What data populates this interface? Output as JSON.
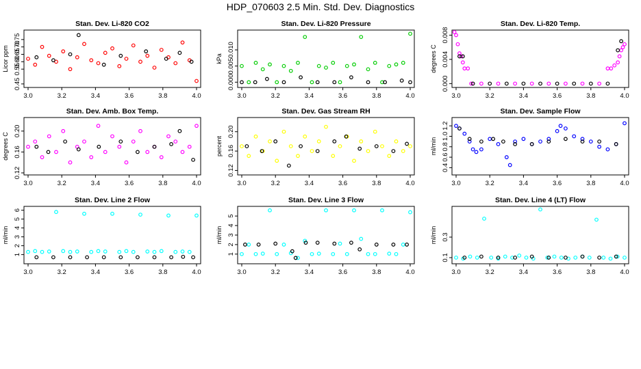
{
  "figure_title": "HDP_070603  2.5 Min. Std. Dev. Diagnostics",
  "chart_data": [
    {
      "type": "scatter",
      "title": "Stan. Dev. Li-820 CO2",
      "ylabel": "Licor ppm",
      "xlim": [
        3.0,
        4.0
      ],
      "ylim": [
        0.44,
        0.8
      ],
      "xticks": [
        "3.0",
        "3.2",
        "3.4",
        "3.6",
        "3.8",
        "4.0"
      ],
      "yticks": [
        {
          "v": 0.45,
          "label": "0.45"
        },
        {
          "v": 0.55,
          "label": "0.55"
        },
        {
          "v": 0.6,
          "label": "0.60"
        },
        {
          "v": 0.65,
          "label": "0.65"
        },
        {
          "v": 0.7,
          "label": "0.70"
        },
        {
          "v": 0.75,
          "label": "0.75"
        }
      ],
      "series": [
        {
          "color": "#ff0000",
          "x": [
            3.0,
            3.0417,
            3.0833,
            3.125,
            3.1667,
            3.2083,
            3.25,
            3.2917,
            3.3333,
            3.375,
            3.4167,
            3.4583,
            3.5,
            3.5417,
            3.5833,
            3.625,
            3.6667,
            3.7083,
            3.75,
            3.7917,
            3.8333,
            3.875,
            3.9167,
            3.9583,
            4.0
          ],
          "y": [
            0.62,
            0.58,
            0.7,
            0.64,
            0.6,
            0.67,
            0.55,
            0.63,
            0.72,
            0.61,
            0.59,
            0.66,
            0.69,
            0.57,
            0.62,
            0.71,
            0.6,
            0.64,
            0.56,
            0.68,
            0.63,
            0.59,
            0.73,
            0.61,
            0.47
          ]
        },
        {
          "color": "#000000",
          "x": [
            3.05,
            3.15,
            3.25,
            3.3,
            3.45,
            3.55,
            3.7,
            3.82,
            3.9,
            3.97
          ],
          "y": [
            0.63,
            0.61,
            0.65,
            0.78,
            0.58,
            0.64,
            0.67,
            0.62,
            0.66,
            0.6
          ]
        }
      ]
    },
    {
      "type": "scatter",
      "title": "Stan. Dev. Li-820 Pressure",
      "ylabel": "kPa",
      "xlim": [
        3.0,
        4.0
      ],
      "ylim": [
        -0.001,
        0.0155
      ],
      "xticks": [
        "3.0",
        "3.2",
        "3.4",
        "3.6",
        "3.8",
        "4.0"
      ],
      "yticks": [
        {
          "v": 0.0,
          "label": "0.000"
        },
        {
          "v": 0.005,
          "label": "0.005"
        },
        {
          "v": 0.01,
          "label": "0.010"
        }
      ],
      "series": [
        {
          "color": "#00cc00",
          "x": [
            3.0,
            3.0417,
            3.0833,
            3.125,
            3.1667,
            3.2083,
            3.25,
            3.2917,
            3.3333,
            3.375,
            3.4167,
            3.4583,
            3.5,
            3.5417,
            3.5833,
            3.625,
            3.6667,
            3.7083,
            3.75,
            3.7917,
            3.8333,
            3.875,
            3.9167,
            3.9583,
            4.0
          ],
          "y": [
            0.005,
            0.0,
            0.006,
            0.004,
            0.0055,
            0.0,
            0.005,
            0.0035,
            0.006,
            0.014,
            0.0,
            0.005,
            0.0045,
            0.006,
            0.0,
            0.005,
            0.0055,
            0.014,
            0.004,
            0.006,
            0.0,
            0.005,
            0.0055,
            0.006,
            0.015
          ]
        },
        {
          "color": "#000000",
          "x": [
            3.0,
            3.08,
            3.15,
            3.25,
            3.35,
            3.45,
            3.55,
            3.65,
            3.75,
            3.85,
            3.95,
            4.0
          ],
          "y": [
            0.0,
            0.0,
            0.001,
            0.0,
            0.0015,
            0.0,
            0.0,
            0.0015,
            0.0,
            0.0,
            0.0005,
            0.0
          ]
        }
      ]
    },
    {
      "type": "scatter",
      "title": "Stan. Dev. Li-820 Temp.",
      "ylabel": "degrees C",
      "xlim": [
        3.0,
        4.0
      ],
      "ylim": [
        -0.0003,
        0.0085
      ],
      "xticks": [
        "3.0",
        "3.2",
        "3.4",
        "3.6",
        "3.8",
        "4.0"
      ],
      "yticks": [
        {
          "v": 0.0,
          "label": "0.000"
        },
        {
          "v": 0.004,
          "label": "0.004"
        },
        {
          "v": 0.008,
          "label": "0.008"
        }
      ],
      "series": [
        {
          "color": "#ff00ff",
          "x": [
            2.99,
            3.0,
            3.01,
            3.02,
            3.03,
            3.04,
            3.05,
            3.07,
            3.09,
            3.15,
            3.25,
            3.35,
            3.45,
            3.55,
            3.65,
            3.75,
            3.85,
            3.9,
            3.92,
            3.94,
            3.96,
            3.97,
            3.98,
            3.99,
            4.0
          ],
          "y": [
            0.0085,
            0.008,
            0.0065,
            0.005,
            0.0045,
            0.0035,
            0.0025,
            0.0025,
            0.0,
            0.0,
            0.0,
            0.0,
            0.0,
            0.0,
            0.0,
            0.0,
            0.0,
            0.0025,
            0.0025,
            0.003,
            0.0035,
            0.0045,
            0.0055,
            0.006,
            0.0065
          ]
        },
        {
          "color": "#000000",
          "x": [
            3.02,
            3.04,
            3.1,
            3.2,
            3.3,
            3.4,
            3.5,
            3.6,
            3.7,
            3.8,
            3.9,
            3.96,
            3.98
          ],
          "y": [
            0.0045,
            0.0045,
            0.0,
            0.0,
            0.0,
            0.0,
            0.0,
            0.0,
            0.0,
            0.0,
            0.0,
            0.0055,
            0.007
          ]
        }
      ]
    },
    {
      "type": "scatter",
      "title": "Stan. Dev. Amb. Box Temp.",
      "ylabel": "degrees C",
      "xlim": [
        3.0,
        4.0
      ],
      "ylim": [
        0.12,
        0.222
      ],
      "xticks": [
        "3.0",
        "3.2",
        "3.4",
        "3.6",
        "3.8",
        "4.0"
      ],
      "yticks": [
        {
          "v": 0.12,
          "label": "0.12"
        },
        {
          "v": 0.16,
          "label": "0.16"
        },
        {
          "v": 0.2,
          "label": "0.20"
        }
      ],
      "series": [
        {
          "color": "#ff00ff",
          "x": [
            3.0,
            3.0417,
            3.0833,
            3.125,
            3.1667,
            3.2083,
            3.25,
            3.2917,
            3.3333,
            3.375,
            3.4167,
            3.4583,
            3.5,
            3.5417,
            3.5833,
            3.625,
            3.6667,
            3.7083,
            3.75,
            3.7917,
            3.8333,
            3.875,
            3.9167,
            3.9583,
            4.0
          ],
          "y": [
            0.17,
            0.18,
            0.15,
            0.19,
            0.16,
            0.2,
            0.14,
            0.17,
            0.18,
            0.15,
            0.21,
            0.16,
            0.19,
            0.17,
            0.14,
            0.18,
            0.2,
            0.16,
            0.17,
            0.15,
            0.19,
            0.18,
            0.16,
            0.17,
            0.21
          ]
        },
        {
          "color": "#000000",
          "x": [
            3.05,
            3.12,
            3.22,
            3.3,
            3.42,
            3.55,
            3.65,
            3.75,
            3.85,
            3.9,
            3.98
          ],
          "y": [
            0.17,
            0.16,
            0.18,
            0.165,
            0.17,
            0.18,
            0.16,
            0.17,
            0.175,
            0.2,
            0.145
          ]
        }
      ]
    },
    {
      "type": "scatter",
      "title": "Stan. Dev. Gas Stream RH",
      "ylabel": "percent",
      "xlim": [
        3.0,
        4.0
      ],
      "ylim": [
        0.115,
        0.225
      ],
      "xticks": [
        "3.0",
        "3.2",
        "3.4",
        "3.6",
        "3.8",
        "4.0"
      ],
      "yticks": [
        {
          "v": 0.12,
          "label": "0.12"
        },
        {
          "v": 0.16,
          "label": "0.16"
        },
        {
          "v": 0.2,
          "label": "0.20"
        }
      ],
      "series": [
        {
          "color": "#ffff00",
          "x": [
            3.0,
            3.0417,
            3.0833,
            3.125,
            3.1667,
            3.2083,
            3.25,
            3.2917,
            3.3333,
            3.375,
            3.4167,
            3.4583,
            3.5,
            3.5417,
            3.5833,
            3.625,
            3.6667,
            3.7083,
            3.75,
            3.7917,
            3.8333,
            3.875,
            3.9167,
            3.9583,
            4.0
          ],
          "y": [
            0.17,
            0.15,
            0.19,
            0.16,
            0.18,
            0.14,
            0.2,
            0.17,
            0.15,
            0.19,
            0.16,
            0.18,
            0.21,
            0.15,
            0.17,
            0.19,
            0.14,
            0.18,
            0.16,
            0.2,
            0.17,
            0.15,
            0.18,
            0.16,
            0.17
          ]
        },
        {
          "color": "#000000",
          "x": [
            3.03,
            3.12,
            3.2,
            3.28,
            3.35,
            3.45,
            3.55,
            3.62,
            3.7,
            3.8,
            3.9,
            3.98
          ],
          "y": [
            0.17,
            0.16,
            0.18,
            0.13,
            0.17,
            0.16,
            0.18,
            0.19,
            0.165,
            0.17,
            0.16,
            0.175
          ]
        }
      ]
    },
    {
      "type": "scatter",
      "title": "Stan. Dev. Sample Flow",
      "ylabel": "ml/min",
      "xlim": [
        3.0,
        4.0
      ],
      "ylim": [
        0.3,
        1.32
      ],
      "xticks": [
        "3.0",
        "3.2",
        "3.4",
        "3.6",
        "3.8",
        "4.0"
      ],
      "yticks": [
        {
          "v": 0.4,
          "label": "0.4"
        },
        {
          "v": 0.6,
          "label": "0.6"
        },
        {
          "v": 0.8,
          "label": "0.8"
        },
        {
          "v": 1.0,
          "label": "1.0"
        },
        {
          "v": 1.2,
          "label": "1.2"
        }
      ],
      "series": [
        {
          "color": "#0000ff",
          "x": [
            3.0,
            3.02,
            3.05,
            3.08,
            3.1,
            3.12,
            3.15,
            3.2,
            3.25,
            3.3,
            3.32,
            3.35,
            3.4,
            3.45,
            3.5,
            3.55,
            3.6,
            3.62,
            3.65,
            3.7,
            3.75,
            3.8,
            3.85,
            3.9,
            3.95,
            4.0
          ],
          "y": [
            1.2,
            1.15,
            1.05,
            0.9,
            0.75,
            0.7,
            0.75,
            0.95,
            0.85,
            0.6,
            0.45,
            0.9,
            0.95,
            0.85,
            0.9,
            0.95,
            1.1,
            1.2,
            1.15,
            1.0,
            0.95,
            0.9,
            0.8,
            0.75,
            0.85,
            1.25
          ]
        },
        {
          "color": "#000000",
          "x": [
            3.02,
            3.08,
            3.15,
            3.22,
            3.28,
            3.35,
            3.45,
            3.55,
            3.65,
            3.75,
            3.85,
            3.95
          ],
          "y": [
            1.15,
            0.95,
            0.9,
            0.95,
            0.9,
            0.85,
            0.85,
            0.9,
            0.95,
            0.9,
            0.9,
            0.85
          ]
        }
      ]
    },
    {
      "type": "scatter",
      "title": "Stan. Dev. Line 2 Flow",
      "ylabel": "ml/min",
      "xlim": [
        3.0,
        4.0
      ],
      "ylim": [
        0.2,
        6.2
      ],
      "xticks": [
        "3.0",
        "3.2",
        "3.4",
        "3.6",
        "3.8",
        "4.0"
      ],
      "yticks": [
        {
          "v": 1,
          "label": "1"
        },
        {
          "v": 2,
          "label": "2"
        },
        {
          "v": 3,
          "label": "3"
        },
        {
          "v": 4,
          "label": "4"
        },
        {
          "v": 5,
          "label": "5"
        },
        {
          "v": 6,
          "label": "6"
        }
      ],
      "series": [
        {
          "color": "#00ffff",
          "x": [
            3.0,
            3.0417,
            3.0833,
            3.125,
            3.1667,
            3.2083,
            3.25,
            3.2917,
            3.3333,
            3.375,
            3.4167,
            3.4583,
            3.5,
            3.5417,
            3.5833,
            3.625,
            3.6667,
            3.7083,
            3.75,
            3.7917,
            3.8333,
            3.875,
            3.9167,
            3.9583,
            4.0
          ],
          "y": [
            1.3,
            1.4,
            1.3,
            1.35,
            5.8,
            1.4,
            1.3,
            1.35,
            5.6,
            1.3,
            1.4,
            1.35,
            5.6,
            1.3,
            1.4,
            1.3,
            5.5,
            1.35,
            1.3,
            1.4,
            5.4,
            1.3,
            1.35,
            1.3,
            5.4
          ]
        },
        {
          "color": "#000000",
          "x": [
            3.05,
            3.15,
            3.25,
            3.35,
            3.45,
            3.55,
            3.65,
            3.75,
            3.85,
            3.92,
            3.98
          ],
          "y": [
            0.7,
            0.7,
            0.7,
            0.7,
            0.7,
            0.7,
            0.7,
            0.7,
            0.7,
            0.75,
            0.7
          ]
        }
      ]
    },
    {
      "type": "scatter",
      "title": "Stan. Dev. Line 3 Flow",
      "ylabel": "ml/min",
      "xlim": [
        3.0,
        4.0
      ],
      "ylim": [
        0.2,
        5.8
      ],
      "xticks": [
        "3.0",
        "3.2",
        "3.4",
        "3.6",
        "3.8",
        "4.0"
      ],
      "yticks": [
        {
          "v": 1,
          "label": "1"
        },
        {
          "v": 2,
          "label": "2"
        },
        {
          "v": 3,
          "label": "3"
        },
        {
          "v": 4,
          "label": "4"
        },
        {
          "v": 5,
          "label": "5"
        }
      ],
      "series": [
        {
          "color": "#00ffff",
          "x": [
            3.0,
            3.0417,
            3.0833,
            3.125,
            3.1667,
            3.2083,
            3.25,
            3.2917,
            3.3333,
            3.375,
            3.4167,
            3.4583,
            3.5,
            3.5417,
            3.5833,
            3.625,
            3.6667,
            3.7083,
            3.75,
            3.7917,
            3.8333,
            3.875,
            3.9167,
            3.9583,
            4.0
          ],
          "y": [
            1.0,
            2.0,
            1.0,
            1.05,
            5.6,
            1.0,
            2.0,
            1.1,
            0.6,
            2.4,
            1.0,
            1.05,
            5.6,
            1.0,
            2.1,
            1.0,
            5.6,
            2.6,
            1.0,
            1.0,
            5.6,
            1.05,
            1.0,
            2.0,
            5.4
          ]
        },
        {
          "color": "#000000",
          "x": [
            3.02,
            3.1,
            3.2,
            3.3,
            3.32,
            3.38,
            3.45,
            3.55,
            3.65,
            3.7,
            3.8,
            3.9,
            3.98
          ],
          "y": [
            2.0,
            2.0,
            2.1,
            1.3,
            0.6,
            2.2,
            2.2,
            2.1,
            2.2,
            1.5,
            2.0,
            2.0,
            2.0
          ]
        }
      ]
    },
    {
      "type": "scatter",
      "title": "Stan. Dev. Line 4 (LT) Flow",
      "ylabel": "ml/min",
      "xlim": [
        3.0,
        4.0
      ],
      "ylim": [
        0.06,
        0.58
      ],
      "xticks": [
        "3.0",
        "3.2",
        "3.4",
        "3.6",
        "3.8",
        "4.0"
      ],
      "yticks": [
        {
          "v": 0.1,
          "label": "0.1"
        },
        {
          "v": 0.3,
          "label": "0.3"
        }
      ],
      "series": [
        {
          "color": "#00ffff",
          "x": [
            3.0,
            3.0417,
            3.0833,
            3.125,
            3.1667,
            3.2083,
            3.25,
            3.2917,
            3.3333,
            3.375,
            3.4167,
            3.4583,
            3.5,
            3.5417,
            3.5833,
            3.625,
            3.6667,
            3.7083,
            3.75,
            3.7917,
            3.8333,
            3.875,
            3.9167,
            3.9583,
            4.0
          ],
          "y": [
            0.1,
            0.09,
            0.11,
            0.1,
            0.48,
            0.1,
            0.09,
            0.11,
            0.1,
            0.12,
            0.1,
            0.09,
            0.57,
            0.1,
            0.11,
            0.1,
            0.09,
            0.1,
            0.11,
            0.1,
            0.47,
            0.1,
            0.09,
            0.11,
            0.1
          ]
        },
        {
          "color": "#000000",
          "x": [
            3.05,
            3.15,
            3.25,
            3.35,
            3.45,
            3.55,
            3.65,
            3.75,
            3.85,
            3.95
          ],
          "y": [
            0.1,
            0.11,
            0.1,
            0.1,
            0.11,
            0.1,
            0.1,
            0.11,
            0.1,
            0.11
          ]
        }
      ]
    }
  ]
}
